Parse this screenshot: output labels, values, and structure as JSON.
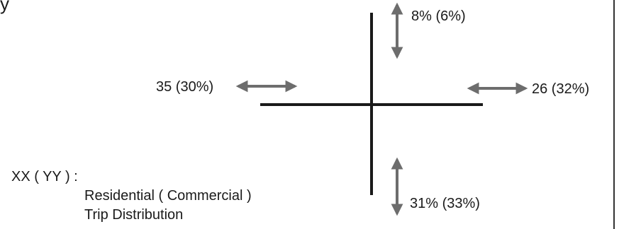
{
  "corner_glyph": "y",
  "labels": {
    "north": "8% (6%)",
    "west": "35 (30%)",
    "east": "26 (32%)",
    "south": "31% (33%)"
  },
  "legend": {
    "key": "XX ( YY ) :",
    "line1": "Residential ( Commercial )",
    "line2": "Trip Distribution"
  },
  "colors": {
    "road": "#1a1a1a",
    "arrow": "#6d6d6d",
    "border": "#333333"
  }
}
